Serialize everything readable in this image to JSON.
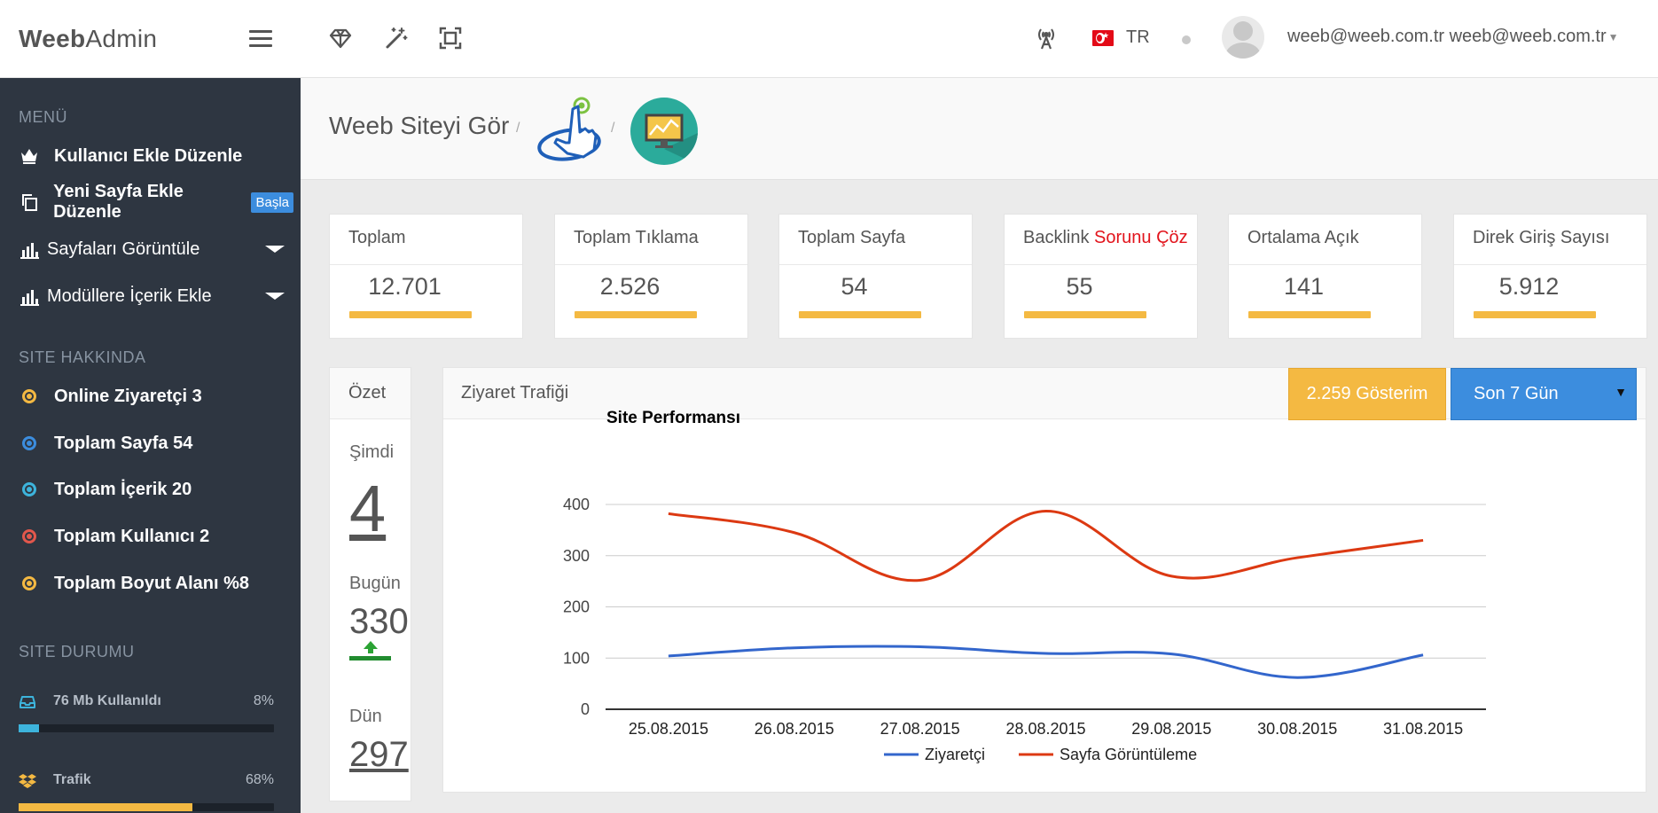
{
  "brand": {
    "bold": "Weeb",
    "rest": "Admin"
  },
  "topbar": {
    "lang": "TR",
    "user": "weeb@weeb.com.tr weeb@weeb.com.tr"
  },
  "sidebar": {
    "menu_title": "MENÜ",
    "items": [
      {
        "label": "Kullanıcı Ekle Düzenle"
      },
      {
        "label": "Yeni Sayfa Ekle Düzenle",
        "badge": "Başla"
      },
      {
        "label": "Sayfaları Görüntüle"
      },
      {
        "label": "Modüllere İçerik Ekle"
      }
    ],
    "about_title": "SITE HAKKINDA",
    "about": [
      {
        "label": "Online Ziyaretçi 3",
        "color": "#f4b942"
      },
      {
        "label": "Toplam Sayfa 54",
        "color": "#3c8dde"
      },
      {
        "label": "Toplam İçerik 20",
        "color": "#3db4dc"
      },
      {
        "label": "Toplam Kullanıcı 2",
        "color": "#e2574c"
      },
      {
        "label": "Toplam Boyut Alanı %8",
        "color": "#f4b942"
      }
    ],
    "status_title": "SITE DURUMU",
    "status": [
      {
        "label": "76 Mb Kullanıldı",
        "pct": "8%",
        "value": 0.08,
        "color": "#3db4dc"
      },
      {
        "label": "Trafik",
        "pct": "68%",
        "value": 0.68,
        "color": "#f4b942"
      }
    ]
  },
  "breadcrumb": {
    "title": "Weeb Siteyi Gör",
    "sep": "/"
  },
  "stats": [
    {
      "label": "Toplam",
      "value": "12.701"
    },
    {
      "label": "Toplam Tıklama",
      "value": "2.526"
    },
    {
      "label": "Toplam Sayfa",
      "value": "54"
    },
    {
      "label": "Backlink ",
      "label_red": "Sorunu Çöz",
      "value": "55"
    },
    {
      "label": "Ortalama Açık",
      "value": "141"
    },
    {
      "label": "Direk Giriş Sayısı",
      "value": "5.912"
    }
  ],
  "ozet": {
    "title": "Özet",
    "now_label": "Şimdi",
    "now": "4",
    "today_label": "Bugün",
    "today": "330",
    "yesterday_label": "Dün",
    "yesterday": "297"
  },
  "traffic": {
    "title": "Ziyaret Trafiği",
    "show_button": "2.259 Gösterim",
    "range": "Son 7 Gün",
    "range_arrow": "▼"
  },
  "chart_data": {
    "type": "line",
    "title": "Site Performansı",
    "categories": [
      "25.08.2015",
      "26.08.2015",
      "27.08.2015",
      "28.08.2015",
      "29.08.2015",
      "30.08.2015",
      "31.08.2015"
    ],
    "series": [
      {
        "name": "Ziyaretçi",
        "color": "#3366cc",
        "values": [
          104,
          120,
          122,
          109,
          108,
          62,
          106
        ]
      },
      {
        "name": "Sayfa Görüntüleme",
        "color": "#dc3912",
        "values": [
          382,
          345,
          252,
          387,
          260,
          296,
          330
        ]
      }
    ],
    "ylim": [
      0,
      400
    ],
    "yticks": [
      0,
      100,
      200,
      300,
      400
    ],
    "grid": true,
    "legend": "bottom"
  }
}
